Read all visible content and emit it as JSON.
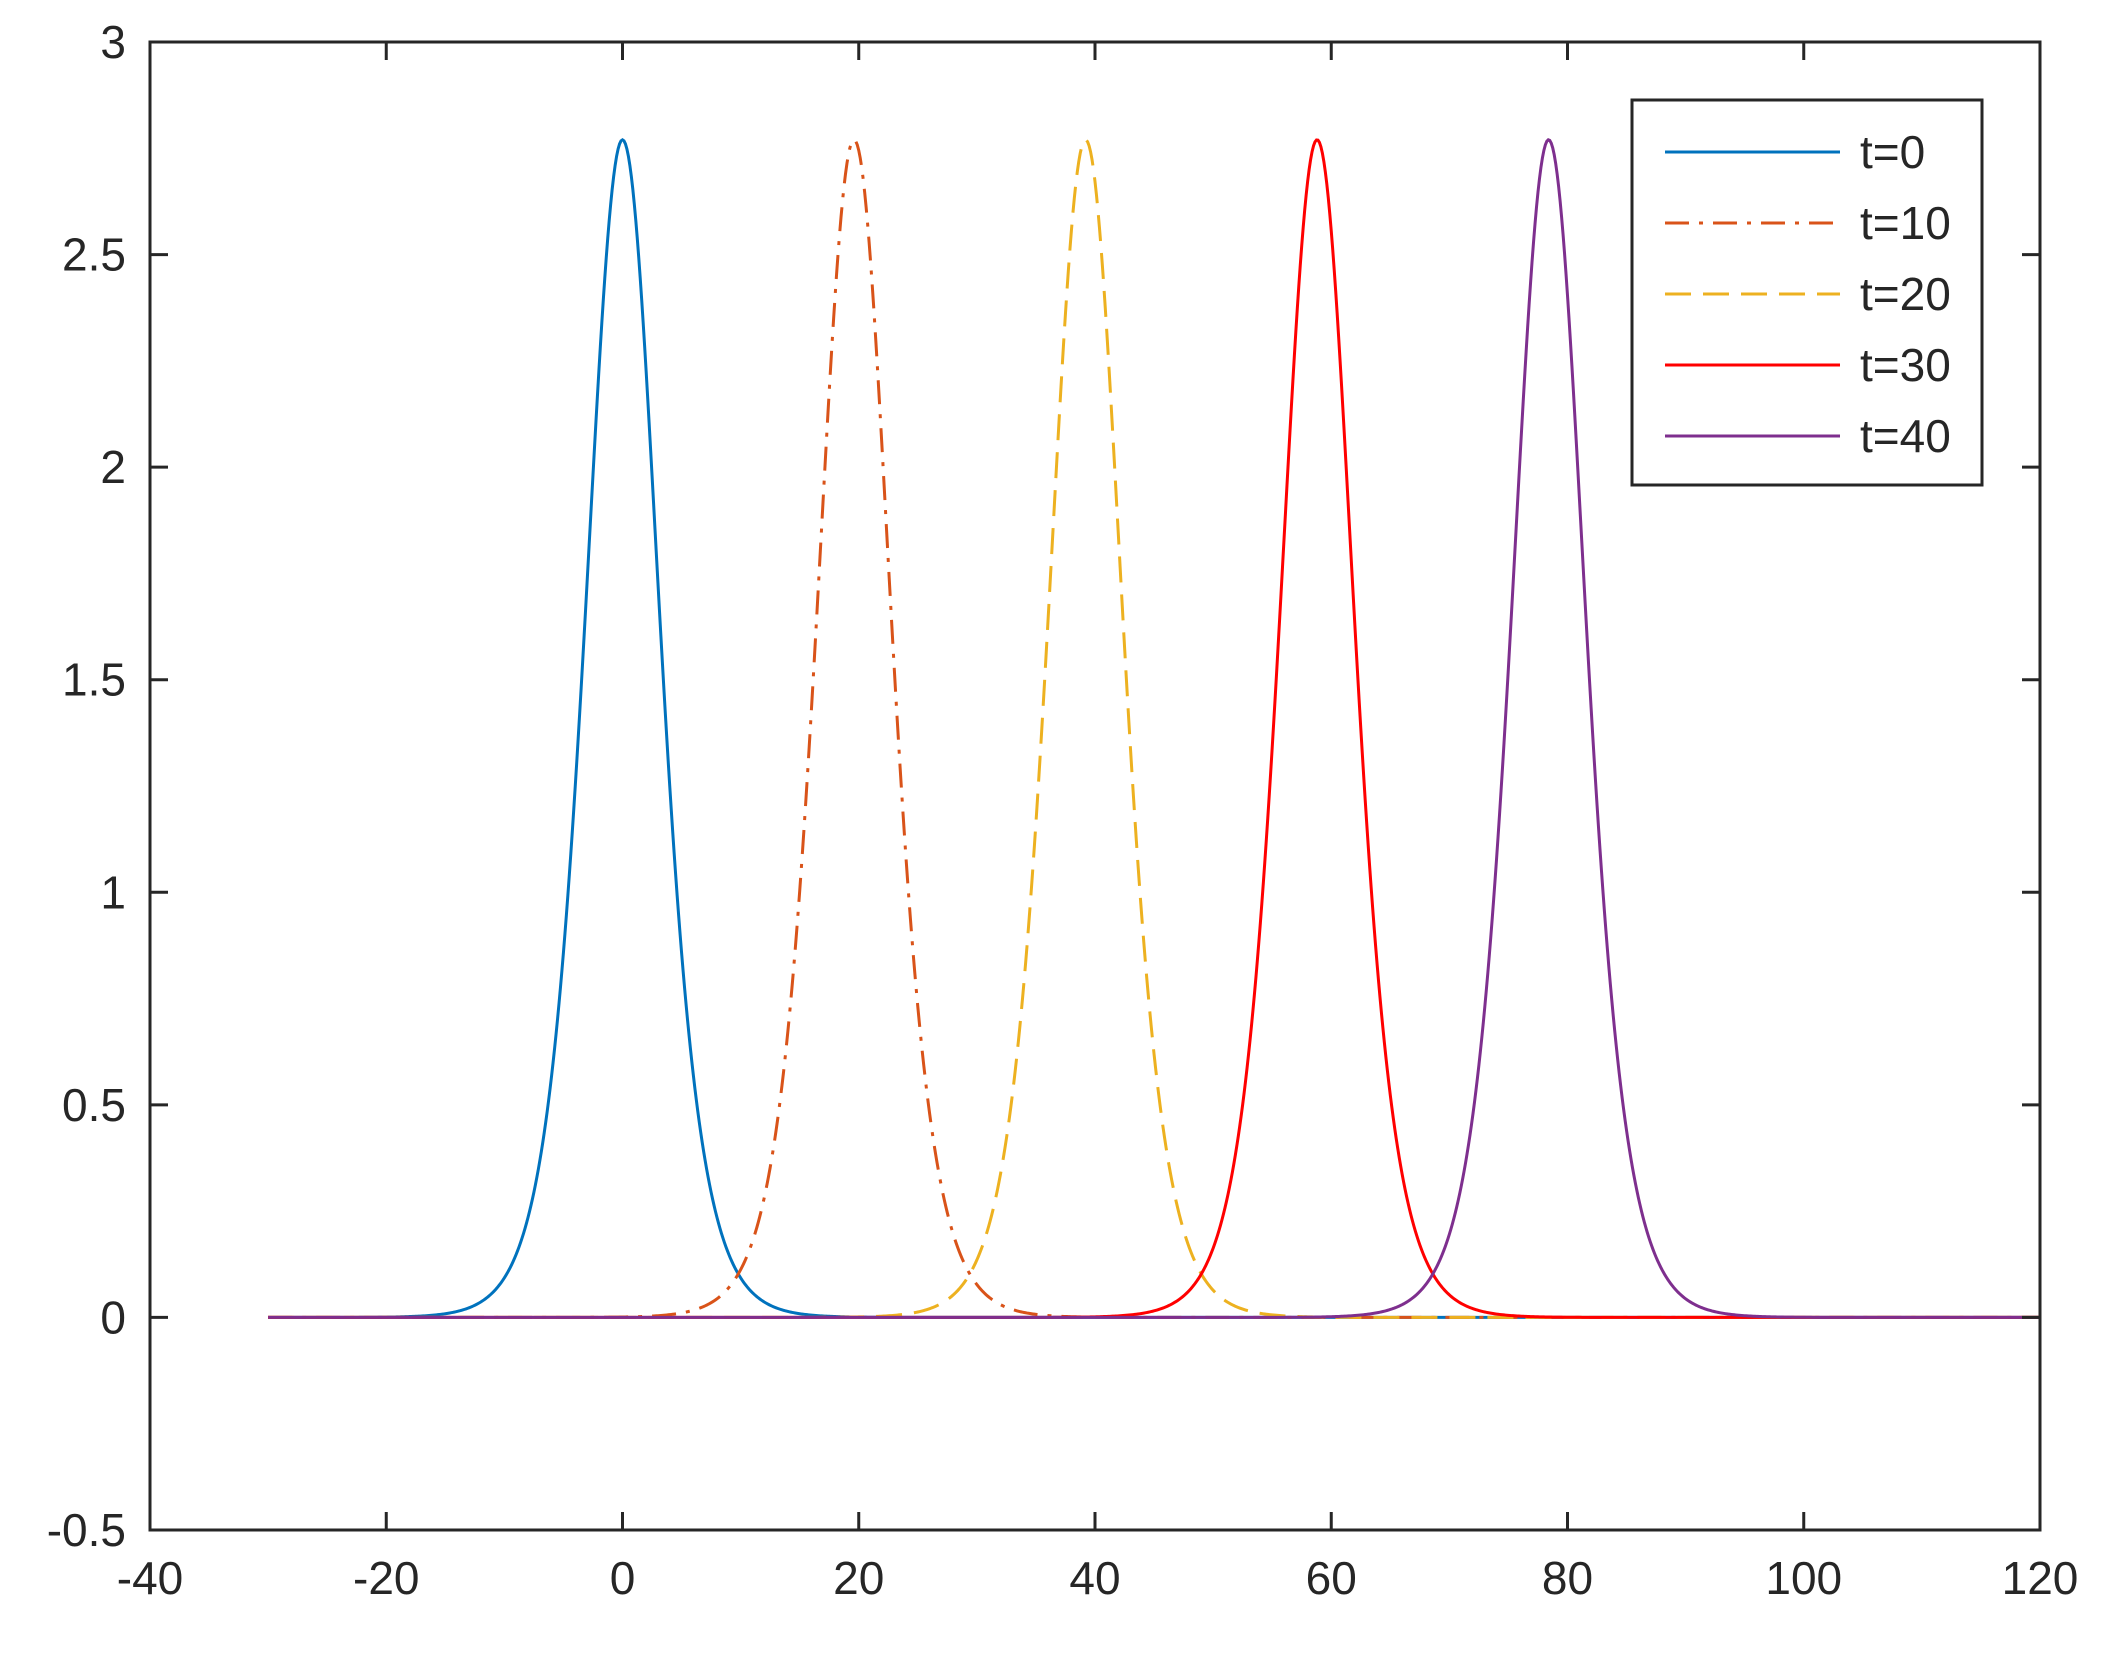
{
  "chart_data": {
    "type": "line",
    "title": "",
    "xlabel": "",
    "ylabel": "",
    "xlim": [
      -40,
      120
    ],
    "ylim": [
      -0.5,
      3
    ],
    "xticks": [
      -40,
      -20,
      0,
      20,
      40,
      60,
      80,
      100,
      120
    ],
    "yticks": [
      -0.5,
      0,
      0.5,
      1,
      1.5,
      2,
      2.5,
      3
    ],
    "xtick_labels": [
      "-40",
      "-20",
      "0",
      "20",
      "40",
      "60",
      "80",
      "100",
      "120"
    ],
    "ytick_labels": [
      "-0.5",
      "0",
      "0.5",
      "1",
      "1.5",
      "2",
      "2.5",
      "3"
    ],
    "grid": false,
    "legend_position": "top-right",
    "x_domain": [
      -30,
      120
    ],
    "series": [
      {
        "name": "t=0",
        "peak_x": 0,
        "peak_y": 2.77,
        "half_width": 4.2,
        "color": "#0072BD",
        "line_style": "solid"
      },
      {
        "name": "t=10",
        "peak_x": 19.6,
        "peak_y": 2.77,
        "half_width": 4.2,
        "color": "#D95319",
        "line_style": "dashdot"
      },
      {
        "name": "t=20",
        "peak_x": 39.2,
        "peak_y": 2.77,
        "half_width": 4.2,
        "color": "#EDB120",
        "line_style": "dashed"
      },
      {
        "name": "t=30",
        "peak_x": 58.8,
        "peak_y": 2.77,
        "half_width": 4.2,
        "color": "#FF0000",
        "line_style": "solid"
      },
      {
        "name": "t=40",
        "peak_x": 78.4,
        "peak_y": 2.77,
        "half_width": 4.2,
        "color": "#7E2F8E",
        "line_style": "solid"
      }
    ]
  }
}
